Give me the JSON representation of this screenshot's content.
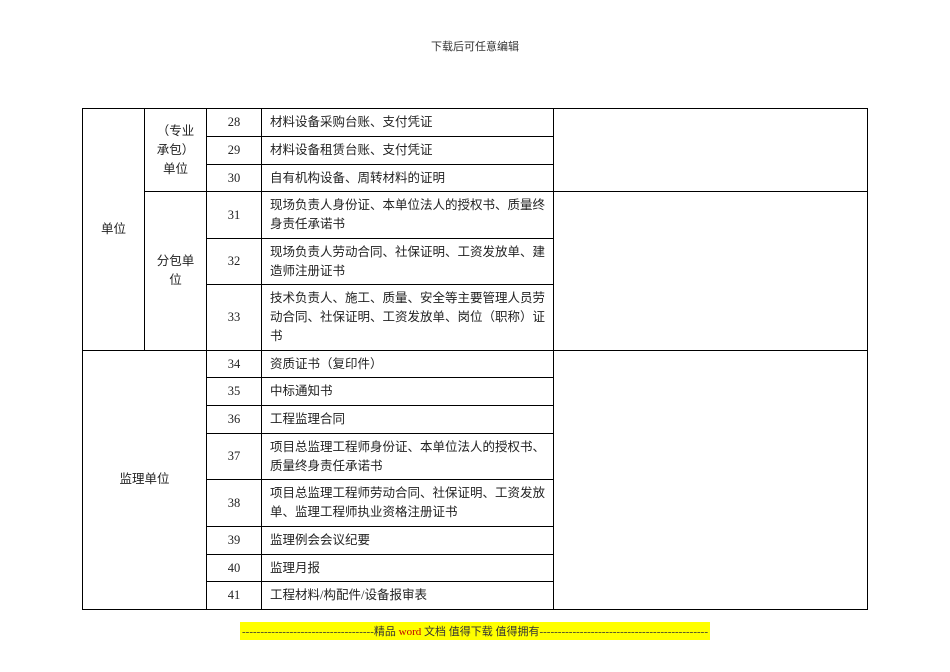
{
  "header": {
    "text": "下载后可任意编辑"
  },
  "table": {
    "col_a_label_unit": "单位",
    "group1": {
      "label": "（专业承包）单位"
    },
    "group2": {
      "label": "分包单位"
    },
    "group3": {
      "label": "监理单位"
    },
    "rows": {
      "r28": {
        "num": "28",
        "desc": "材料设备采购台账、支付凭证"
      },
      "r29": {
        "num": "29",
        "desc": "材料设备租赁台账、支付凭证"
      },
      "r30": {
        "num": "30",
        "desc": "自有机构设备、周转材料的证明"
      },
      "r31": {
        "num": "31",
        "desc": "现场负责人身份证、本单位法人的授权书、质量终身责任承诺书"
      },
      "r32": {
        "num": "32",
        "desc": "现场负责人劳动合同、社保证明、工资发放单、建造师注册证书"
      },
      "r33": {
        "num": "33",
        "desc": "技术负责人、施工、质量、安全等主要管理人员劳动合同、社保证明、工资发放单、岗位（职称）证书"
      },
      "r34": {
        "num": "34",
        "desc": "资质证书（复印件）"
      },
      "r35": {
        "num": "35",
        "desc": "中标通知书"
      },
      "r36": {
        "num": "36",
        "desc": "工程监理合同"
      },
      "r37": {
        "num": "37",
        "desc": "项目总监理工程师身份证、本单位法人的授权书、质量终身责任承诺书"
      },
      "r38": {
        "num": "38",
        "desc": "项目总监理工程师劳动合同、社保证明、工资发放单、监理工程师执业资格注册证书"
      },
      "r39": {
        "num": "39",
        "desc": "监理例会会议纪要"
      },
      "r40": {
        "num": "40",
        "desc": "监理月报"
      },
      "r41": {
        "num": "41",
        "desc": "工程材料/构配件/设备报审表"
      }
    }
  },
  "footer": {
    "dashes_left": "------------------------------------",
    "mid1": "精品 ",
    "word": "word ",
    "mid2": "文档 值得下载 值得拥有",
    "dashes_right": "----------------------------------------------"
  }
}
